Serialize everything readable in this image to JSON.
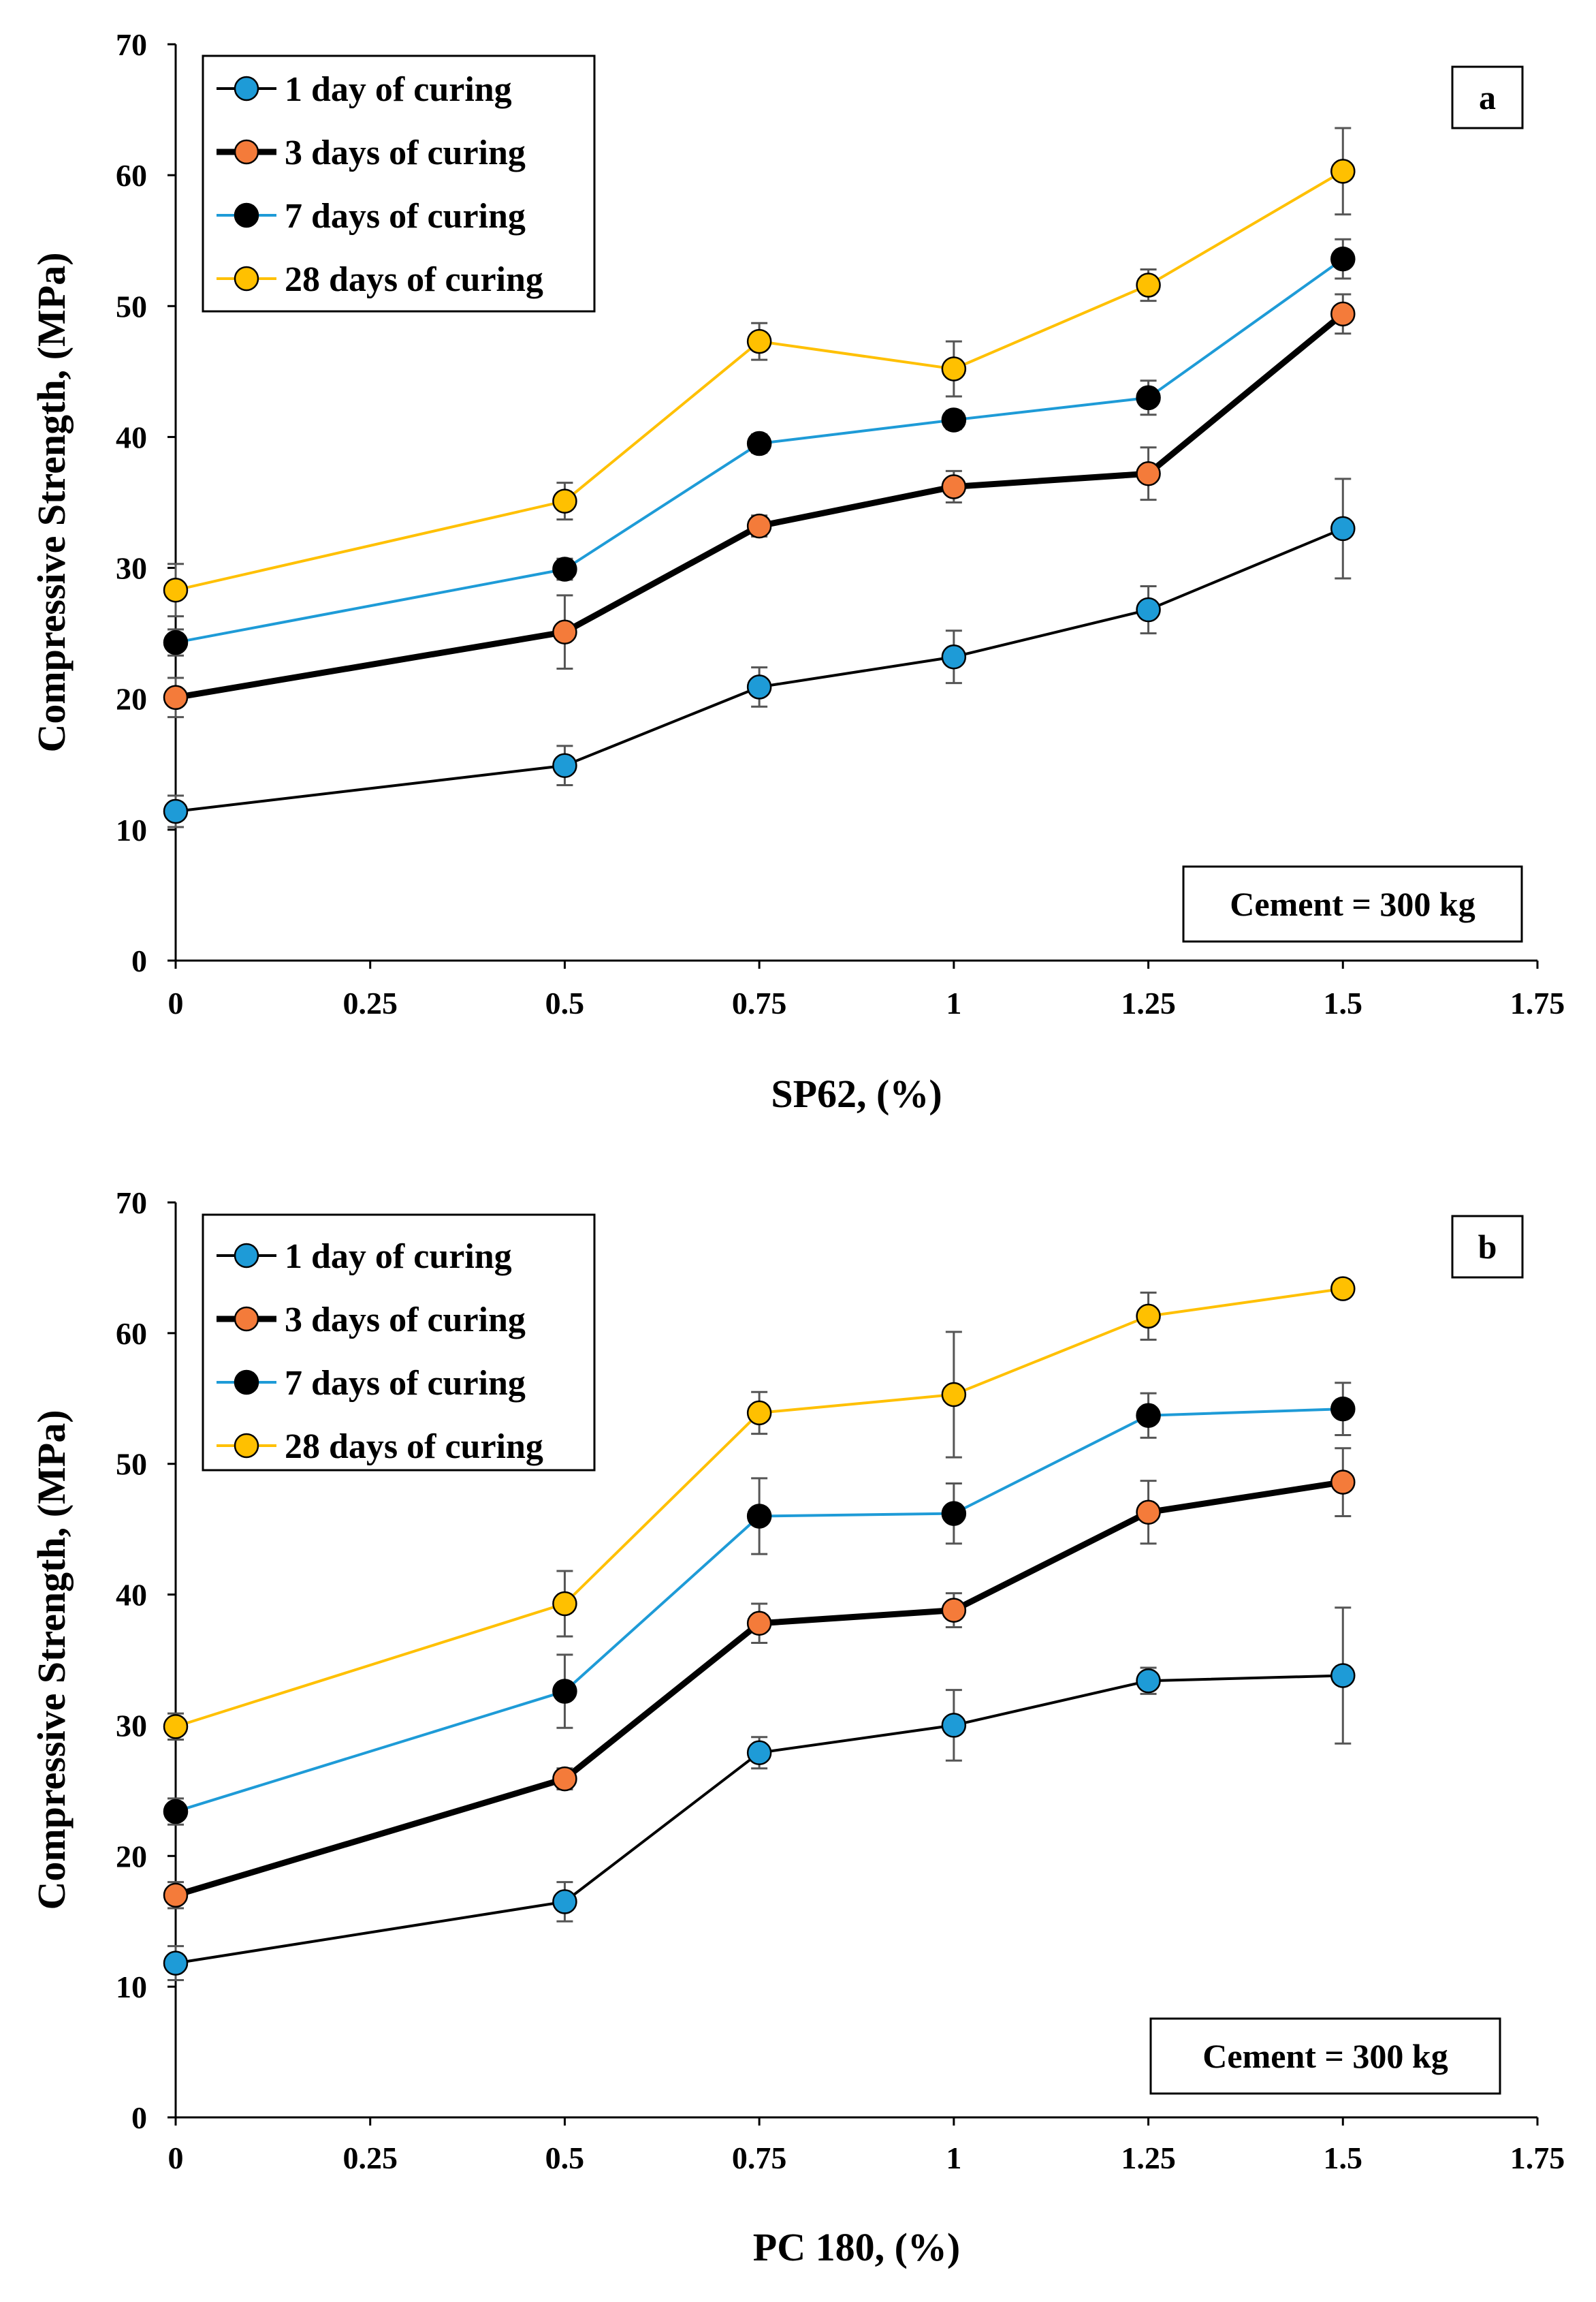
{
  "charts": [
    {
      "id": "a",
      "panel_label": "a",
      "note": "Cement = 300 kg",
      "ylabel": "Compressive  Strength, (MPa)",
      "xlabel": "SP62, (%)",
      "x_ticks": [
        "0",
        "0.25",
        "0.5",
        "0.75",
        "1",
        "1.25",
        "1.5",
        "1.75"
      ],
      "y_ticks": [
        "0",
        "10",
        "20",
        "30",
        "40",
        "50",
        "60",
        "70"
      ]
    },
    {
      "id": "b",
      "panel_label": "b",
      "note": "Cement = 300 kg",
      "ylabel": "Compressive  Strength, (MPa)",
      "xlabel": "PC 180, (%)",
      "x_ticks": [
        "0",
        "0.25",
        "0.5",
        "0.75",
        "1",
        "1.25",
        "1.5",
        "1.75"
      ],
      "y_ticks": [
        "0",
        "10",
        "20",
        "30",
        "40",
        "50",
        "60",
        "70"
      ]
    }
  ],
  "chart_data": [
    {
      "type": "line",
      "title": "",
      "panel": "a",
      "xlabel": "SP62, (%)",
      "ylabel": "Compressive  Strength, (MPa)",
      "xlim": [
        0,
        1.75
      ],
      "ylim": [
        0,
        70
      ],
      "x": [
        0,
        0.5,
        0.75,
        1,
        1.25,
        1.5
      ],
      "legend_position": "top-left",
      "series": [
        {
          "name": "1 day of curing",
          "line_color": "#000000",
          "marker_color": "#1E9BD7",
          "line_weight": "thin",
          "values": [
            11.4,
            14.9,
            20.9,
            23.2,
            26.8,
            33.0
          ],
          "errors": [
            1.2,
            1.5,
            1.5,
            2.0,
            1.8,
            3.8
          ]
        },
        {
          "name": "3 days of curing",
          "line_color": "#000000",
          "marker_color": "#F47B3A",
          "line_weight": "thick",
          "values": [
            20.1,
            25.1,
            33.2,
            36.2,
            37.2,
            49.4
          ],
          "errors": [
            1.5,
            2.8,
            0.8,
            1.2,
            2.0,
            1.5
          ]
        },
        {
          "name": "7 days of curing",
          "line_color": "#1E9BD7",
          "marker_color": "#000000",
          "line_weight": "thin",
          "values": [
            24.3,
            29.9,
            39.5,
            41.3,
            43.0,
            53.6
          ],
          "errors": [
            1.0,
            0.8,
            0.7,
            0.7,
            1.3,
            1.5
          ]
        },
        {
          "name": "28 days of curing",
          "line_color": "#FFC000",
          "marker_color": "#FFC000",
          "line_weight": "thin",
          "values": [
            28.3,
            35.1,
            47.3,
            45.2,
            51.6,
            60.3
          ],
          "errors": [
            2.0,
            1.4,
            1.4,
            2.1,
            1.2,
            3.3
          ]
        }
      ]
    },
    {
      "type": "line",
      "title": "",
      "panel": "b",
      "xlabel": "PC 180, (%)",
      "ylabel": "Compressive  Strength, (MPa)",
      "xlim": [
        0,
        1.75
      ],
      "ylim": [
        0,
        70
      ],
      "x": [
        0,
        0.5,
        0.75,
        1,
        1.25,
        1.5
      ],
      "legend_position": "top-left",
      "series": [
        {
          "name": "1 day of curing",
          "line_color": "#000000",
          "marker_color": "#1E9BD7",
          "line_weight": "thin",
          "values": [
            11.8,
            16.5,
            27.9,
            30.0,
            33.4,
            33.8
          ],
          "errors": [
            1.3,
            1.5,
            1.2,
            2.7,
            1.0,
            5.2
          ]
        },
        {
          "name": "3 days of curing",
          "line_color": "#000000",
          "marker_color": "#F47B3A",
          "line_weight": "thick",
          "values": [
            17.0,
            25.9,
            37.8,
            38.8,
            46.3,
            48.6
          ],
          "errors": [
            1.0,
            0.8,
            1.5,
            1.3,
            2.4,
            2.6
          ]
        },
        {
          "name": "7 days of curing",
          "line_color": "#1E9BD7",
          "marker_color": "#000000",
          "line_weight": "thin",
          "values": [
            23.4,
            32.6,
            46.0,
            46.2,
            53.7,
            54.2
          ],
          "errors": [
            1.0,
            2.8,
            2.9,
            2.3,
            1.7,
            2.0
          ]
        },
        {
          "name": "28 days of curing",
          "line_color": "#FFC000",
          "marker_color": "#FFC000",
          "line_weight": "thin",
          "values": [
            29.9,
            39.3,
            53.9,
            55.3,
            61.3,
            63.4
          ],
          "errors": [
            1.0,
            2.5,
            1.6,
            4.8,
            1.8,
            0.6
          ]
        }
      ]
    }
  ]
}
